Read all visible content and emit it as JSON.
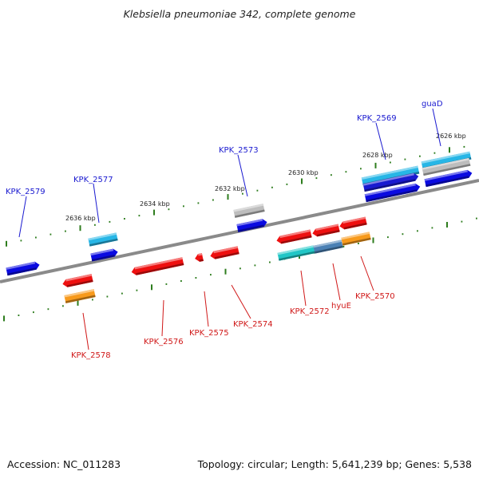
{
  "title": "Klebsiella pneumoniae 342, complete genome",
  "footer": {
    "accession": "Accession: NC_011283",
    "info": "Topology: circular; Length: 5,641,239 bp; Genes: 5,538"
  },
  "colors": {
    "backbone": "#808080",
    "tick": "#2e7d1e",
    "label_upper": "#1a1ad0",
    "label_lower": "#d01818",
    "blue": "#0a0ae0",
    "cyan": "#27b6e6",
    "gray": "#bdbdbd",
    "red": "#ee1010",
    "orange": "#f79a1c",
    "teal": "#21c6c6",
    "steel": "#4a80b4",
    "navy": "#1a1ad0"
  },
  "scale_labels": [
    "2636 kbp",
    "2634 kbp",
    "2632 kbp",
    "2630 kbp",
    "2628 kbp",
    "2626 kbp"
  ],
  "upper_genes": [
    "KPK_2579",
    "KPK_2577",
    "KPK_2573",
    "KPK_2569",
    "guaD"
  ],
  "lower_genes": [
    "KPK_2578",
    "KPK_2576",
    "KPK_2575",
    "KPK_2574",
    "KPK_2572",
    "hyuE",
    "KPK_2570"
  ]
}
